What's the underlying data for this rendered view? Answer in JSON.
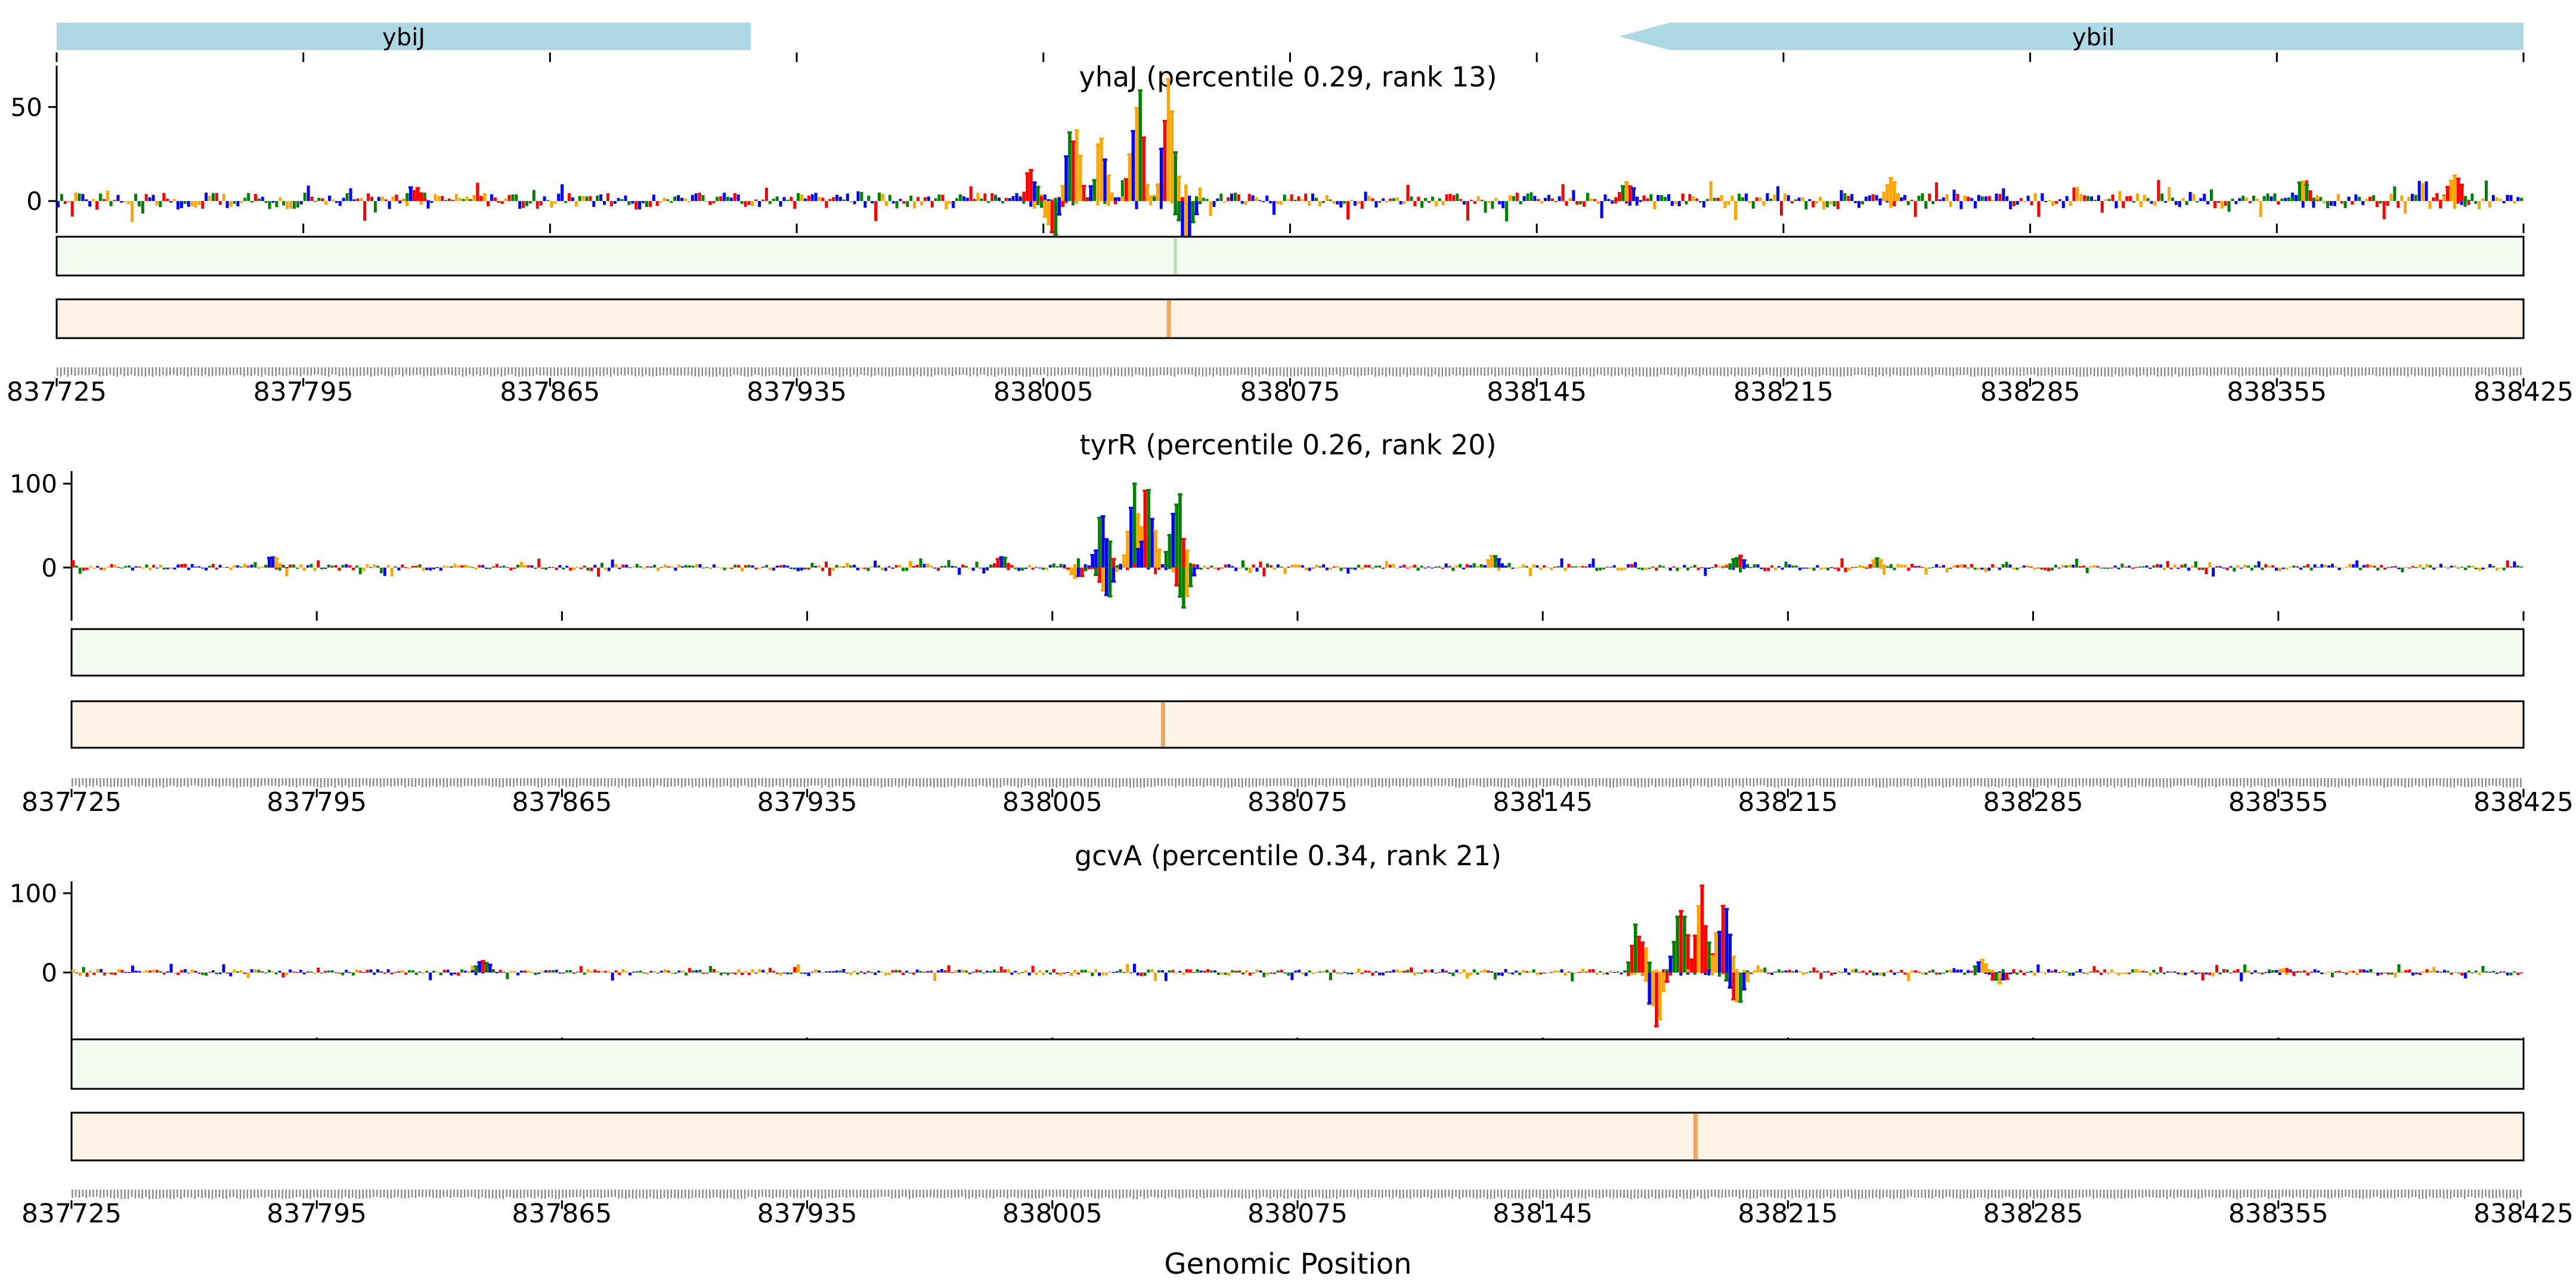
{
  "colors": {
    "gene_arrow": "#add8e6",
    "base_A": "#008000",
    "base_C": "#0000ff",
    "base_G": "#ffa500",
    "base_T": "#ff0000",
    "track_green_bg": "#f3faf0",
    "track_green_mark": "#b7ddb0",
    "track_orange_bg": "#fff3e8",
    "track_orange_mark": "#f2a65a",
    "frame": "#000000"
  },
  "genes": [
    {
      "name": "ybiJ",
      "start": 837725,
      "end": 837922,
      "strand": "+"
    },
    {
      "name": "ybiI",
      "start": 838181,
      "end": 838425,
      "strand": "-"
    }
  ],
  "xlabel": "Genomic Position",
  "chart_data": [
    {
      "type": "bar",
      "title": "yhaJ (percentile 0.29, rank 13)",
      "x_range": [
        837725,
        838425
      ],
      "x_ticks": [
        "837725",
        "837795",
        "837865",
        "837935",
        "838005",
        "838075",
        "838145",
        "838215",
        "838285",
        "838355",
        "838425"
      ],
      "y_ticks": [
        "50",
        "0"
      ],
      "y_tick_values": [
        50,
        0
      ],
      "ylim": [
        -12,
        72
      ],
      "peaks": [
        {
          "pos": 837826,
          "value": 10,
          "sign": 1
        },
        {
          "pos": 838001,
          "value": 18,
          "sign": 1
        },
        {
          "pos": 838007,
          "value": 22,
          "sign": -1
        },
        {
          "pos": 838013,
          "value": 55,
          "sign": 1
        },
        {
          "pos": 838021,
          "value": 38,
          "sign": 1
        },
        {
          "pos": 838031,
          "value": 70,
          "sign": 1
        },
        {
          "pos": 838040,
          "value": 65,
          "sign": 1
        },
        {
          "pos": 838045,
          "value": 35,
          "sign": -1
        },
        {
          "pos": 838170,
          "value": 14,
          "sign": 1
        },
        {
          "pos": 838245,
          "value": 12,
          "sign": 1
        },
        {
          "pos": 838362,
          "value": 12,
          "sign": 1
        },
        {
          "pos": 838405,
          "value": 20,
          "sign": 1
        }
      ],
      "green_marks": [
        838042
      ],
      "orange_marks": [
        838040
      ]
    },
    {
      "type": "bar",
      "title": "tyrR (percentile 0.26, rank 20)",
      "x_range": [
        837725,
        838425
      ],
      "x_ticks": [
        "837725",
        "837795",
        "837865",
        "837935",
        "838005",
        "838075",
        "838145",
        "838215",
        "838285",
        "838355",
        "838425"
      ],
      "y_ticks": [
        "100",
        "0"
      ],
      "y_tick_values": [
        100,
        0
      ],
      "ylim": [
        -52,
        115
      ],
      "peaks": [
        {
          "pos": 837782,
          "value": 12,
          "sign": 1
        },
        {
          "pos": 837990,
          "value": 15,
          "sign": 1
        },
        {
          "pos": 838012,
          "value": 15,
          "sign": -1
        },
        {
          "pos": 838019,
          "value": 70,
          "sign": 1
        },
        {
          "pos": 838020,
          "value": 45,
          "sign": -1
        },
        {
          "pos": 838028,
          "value": 100,
          "sign": 1
        },
        {
          "pos": 838032,
          "value": 110,
          "sign": 1
        },
        {
          "pos": 838040,
          "value": 110,
          "sign": 1
        },
        {
          "pos": 838042,
          "value": 48,
          "sign": -1
        },
        {
          "pos": 838131,
          "value": 15,
          "sign": 1
        },
        {
          "pos": 838200,
          "value": 15,
          "sign": 1
        },
        {
          "pos": 838240,
          "value": 10,
          "sign": 1
        }
      ],
      "green_marks": [],
      "orange_marks": [
        838036
      ]
    },
    {
      "type": "bar",
      "title": "gcvA (percentile 0.34, rank 21)",
      "x_range": [
        837725,
        838425
      ],
      "x_ticks": [
        "837725",
        "837795",
        "837865",
        "837935",
        "838005",
        "838075",
        "838145",
        "838215",
        "838285",
        "838355",
        "838425"
      ],
      "y_ticks": [
        "100",
        "0"
      ],
      "y_tick_values": [
        100,
        0
      ],
      "ylim": [
        -82,
        115
      ],
      "peaks": [
        {
          "pos": 837842,
          "value": 18,
          "sign": 1
        },
        {
          "pos": 838172,
          "value": 78,
          "sign": 1
        },
        {
          "pos": 838177,
          "value": 78,
          "sign": -1
        },
        {
          "pos": 838184,
          "value": 110,
          "sign": 1
        },
        {
          "pos": 838190,
          "value": 110,
          "sign": 1
        },
        {
          "pos": 838196,
          "value": 100,
          "sign": 1
        },
        {
          "pos": 838200,
          "value": 52,
          "sign": -1
        },
        {
          "pos": 838270,
          "value": 15,
          "sign": 1
        },
        {
          "pos": 838275,
          "value": 15,
          "sign": -1
        },
        {
          "pos": 838356,
          "value": 8,
          "sign": 1
        }
      ],
      "green_marks": [],
      "orange_marks": [
        838188
      ]
    }
  ]
}
